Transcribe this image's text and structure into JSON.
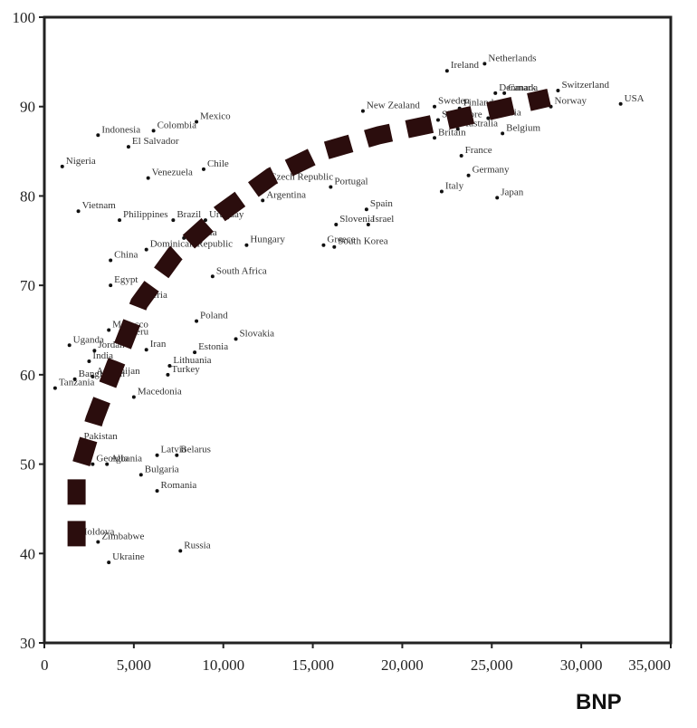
{
  "chart_data": {
    "type": "scatter",
    "title": "",
    "xlabel": "BNP",
    "ylabel": "",
    "xlim": [
      0,
      35000
    ],
    "ylim": [
      30,
      100
    ],
    "xticks": [
      "0",
      "5,000",
      "10,000",
      "15,000",
      "20,000",
      "25,000",
      "30,000",
      "35,000"
    ],
    "yticks": [
      "30",
      "40",
      "50",
      "60",
      "70",
      "80",
      "90",
      "100"
    ],
    "grid": false,
    "points": [
      {
        "label": "Netherlands",
        "x": 24600,
        "y": 94.8
      },
      {
        "label": "Ireland",
        "x": 22500,
        "y": 94
      },
      {
        "label": "Denmark",
        "x": 25200,
        "y": 91.5
      },
      {
        "label": "Canada",
        "x": 25700,
        "y": 91.5
      },
      {
        "label": "Switzerland",
        "x": 28700,
        "y": 91.8
      },
      {
        "label": "USA",
        "x": 32200,
        "y": 90.3
      },
      {
        "label": "Norway",
        "x": 28300,
        "y": 90
      },
      {
        "label": "Sweden",
        "x": 21800,
        "y": 90
      },
      {
        "label": "Finland",
        "x": 23200,
        "y": 89.8
      },
      {
        "label": "Singapore",
        "x": 22000,
        "y": 88.5
      },
      {
        "label": "Austria",
        "x": 24800,
        "y": 88.7
      },
      {
        "label": "Australia",
        "x": 23100,
        "y": 87.5
      },
      {
        "label": "Belgium",
        "x": 25600,
        "y": 87
      },
      {
        "label": "Britain",
        "x": 21800,
        "y": 86.5
      },
      {
        "label": "New Zealand",
        "x": 17800,
        "y": 89.5
      },
      {
        "label": "France",
        "x": 23300,
        "y": 84.5
      },
      {
        "label": "Germany",
        "x": 23700,
        "y": 82.3
      },
      {
        "label": "Italy",
        "x": 22200,
        "y": 80.5
      },
      {
        "label": "Japan",
        "x": 25300,
        "y": 79.8
      },
      {
        "label": "Portugal",
        "x": 16000,
        "y": 81
      },
      {
        "label": "Spain",
        "x": 18000,
        "y": 78.5
      },
      {
        "label": "Israel",
        "x": 18100,
        "y": 76.8
      },
      {
        "label": "Slovenia",
        "x": 16300,
        "y": 76.8
      },
      {
        "label": "Greece",
        "x": 15600,
        "y": 74.5
      },
      {
        "label": "South Korea",
        "x": 16200,
        "y": 74.3
      },
      {
        "label": "Czech Republic",
        "x": 12400,
        "y": 81.5
      },
      {
        "label": "Argentina",
        "x": 12200,
        "y": 79.5
      },
      {
        "label": "Hungary",
        "x": 11300,
        "y": 74.5
      },
      {
        "label": "Uruguay",
        "x": 9000,
        "y": 77.3
      },
      {
        "label": "Croatia",
        "x": 7800,
        "y": 75.3
      },
      {
        "label": "Dominican Republic",
        "x": 5700,
        "y": 74
      },
      {
        "label": "South Africa",
        "x": 9400,
        "y": 71
      },
      {
        "label": "Mexico",
        "x": 8500,
        "y": 88.3
      },
      {
        "label": "Colombia",
        "x": 6100,
        "y": 87.3
      },
      {
        "label": "El Salvador",
        "x": 4700,
        "y": 85.5
      },
      {
        "label": "Chile",
        "x": 8900,
        "y": 83
      },
      {
        "label": "Venezuela",
        "x": 5800,
        "y": 82
      },
      {
        "label": "Brazil",
        "x": 7200,
        "y": 77.3
      },
      {
        "label": "Indonesia",
        "x": 3000,
        "y": 86.8
      },
      {
        "label": "Nigeria",
        "x": 1000,
        "y": 83.3
      },
      {
        "label": "Vietnam",
        "x": 1900,
        "y": 78.3
      },
      {
        "label": "Philippines",
        "x": 4200,
        "y": 77.3
      },
      {
        "label": "China",
        "x": 3700,
        "y": 72.8
      },
      {
        "label": "Egypt",
        "x": 3700,
        "y": 70
      },
      {
        "label": "Algeria",
        "x": 5000,
        "y": 68.3
      },
      {
        "label": "Morocco",
        "x": 3600,
        "y": 65
      },
      {
        "label": "Peru",
        "x": 4600,
        "y": 64.2
      },
      {
        "label": "Poland",
        "x": 8500,
        "y": 66
      },
      {
        "label": "Slovakia",
        "x": 10700,
        "y": 64
      },
      {
        "label": "Uganda",
        "x": 1400,
        "y": 63.3
      },
      {
        "label": "Jordan",
        "x": 2800,
        "y": 62.7
      },
      {
        "label": "India",
        "x": 2500,
        "y": 61.5
      },
      {
        "label": "Iran",
        "x": 5700,
        "y": 62.8
      },
      {
        "label": "Estonia",
        "x": 8400,
        "y": 62.5
      },
      {
        "label": "Lithuania",
        "x": 7000,
        "y": 61
      },
      {
        "label": "Turkey",
        "x": 6900,
        "y": 60
      },
      {
        "label": "Azerbaijan",
        "x": 2700,
        "y": 59.8
      },
      {
        "label": "Bangladesh",
        "x": 1700,
        "y": 59.5
      },
      {
        "label": "Tanzania",
        "x": 600,
        "y": 58.5
      },
      {
        "label": "Macedonia",
        "x": 5000,
        "y": 57.5
      },
      {
        "label": "Pakistan",
        "x": 2000,
        "y": 52.5
      },
      {
        "label": "Latvia",
        "x": 6300,
        "y": 51
      },
      {
        "label": "Belarus",
        "x": 7400,
        "y": 51
      },
      {
        "label": "Albania",
        "x": 3500,
        "y": 50
      },
      {
        "label": "Georgia",
        "x": 2700,
        "y": 50
      },
      {
        "label": "Bulgaria",
        "x": 5400,
        "y": 48.8
      },
      {
        "label": "Romania",
        "x": 6300,
        "y": 47
      },
      {
        "label": "Moldova",
        "x": 1700,
        "y": 41.8
      },
      {
        "label": "Zimbabwe",
        "x": 3000,
        "y": 41.3
      },
      {
        "label": "Russia",
        "x": 7600,
        "y": 40.3
      },
      {
        "label": "Ukraine",
        "x": 3600,
        "y": 39
      }
    ],
    "trend_line": {
      "style": "dashed",
      "x": [
        1800,
        1800,
        2800,
        4000,
        5300,
        7300,
        9800,
        12700,
        15600,
        18700,
        22000,
        25300,
        28200
      ],
      "y": [
        40.8,
        48.3,
        55,
        61.3,
        68,
        73.5,
        78,
        82.2,
        85,
        86.8,
        88.2,
        89.7,
        91
      ]
    }
  }
}
